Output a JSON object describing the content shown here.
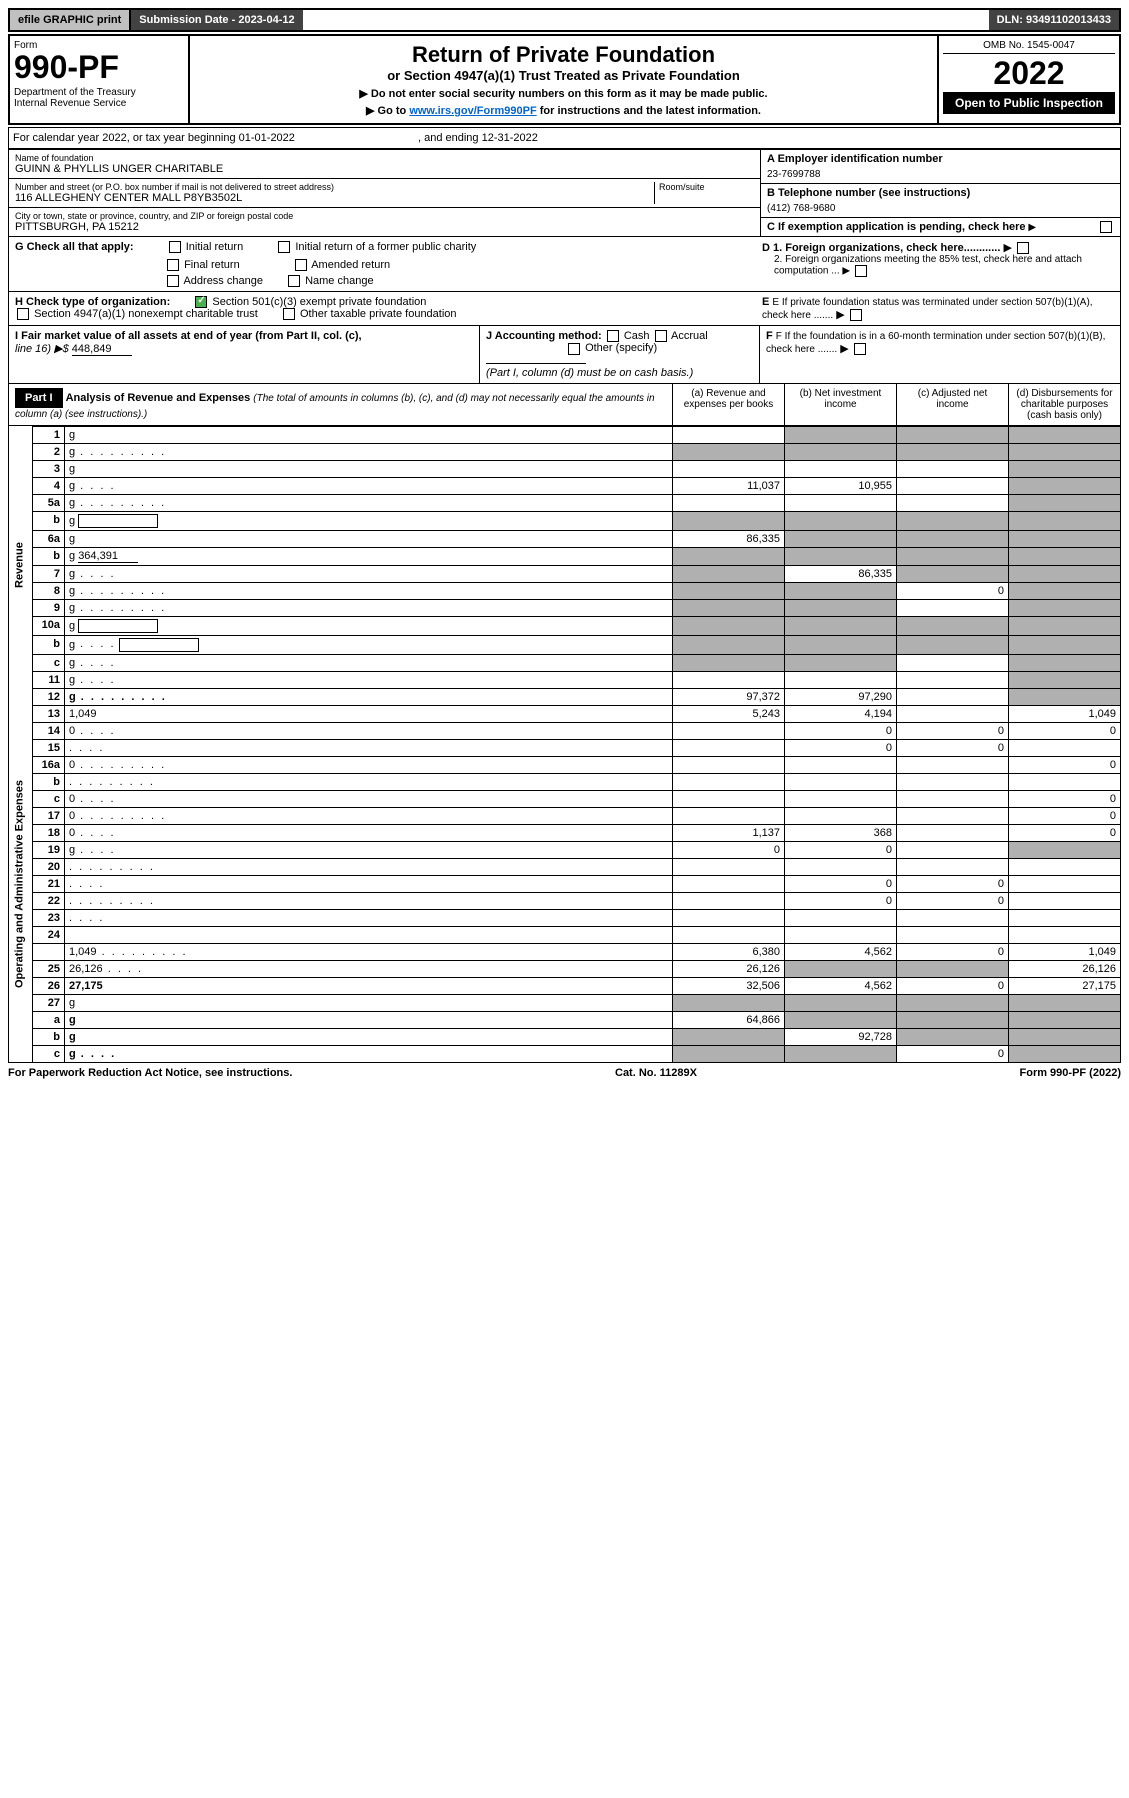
{
  "top": {
    "efile": "efile GRAPHIC print",
    "sub_date_label": "Submission Date - ",
    "sub_date": "2023-04-12",
    "dln_label": "DLN: ",
    "dln": "93491102013433"
  },
  "header": {
    "form_label": "Form",
    "form_number": "990-PF",
    "dept": "Department of the Treasury\nInternal Revenue Service",
    "title": "Return of Private Foundation",
    "subtitle": "or Section 4947(a)(1) Trust Treated as Private Foundation",
    "instr1": "▶ Do not enter social security numbers on this form as it may be made public.",
    "instr2_pre": "▶ Go to ",
    "instr2_link": "www.irs.gov/Form990PF",
    "instr2_post": " for instructions and the latest information.",
    "omb": "OMB No. 1545-0047",
    "year": "2022",
    "open": "Open to Public Inspection"
  },
  "cal": {
    "text": "For calendar year 2022, or tax year beginning ",
    "begin": "01-01-2022",
    "mid": " , and ending ",
    "end": "12-31-2022"
  },
  "info": {
    "name_label": "Name of foundation",
    "name": "GUINN & PHYLLIS UNGER CHARITABLE",
    "addr_label": "Number and street (or P.O. box number if mail is not delivered to street address)",
    "addr": "116 ALLEGHENY CENTER MALL P8YB3502L",
    "room_label": "Room/suite",
    "city_label": "City or town, state or province, country, and ZIP or foreign postal code",
    "city": "PITTSBURGH, PA  15212",
    "a_label": "A Employer identification number",
    "a_val": "23-7699788",
    "b_label": "B Telephone number (see instructions)",
    "b_val": "(412) 768-9680",
    "c_label": "C If exemption application is pending, check here",
    "d1": "D 1. Foreign organizations, check here............",
    "d2": "2. Foreign organizations meeting the 85% test, check here and attach computation ...",
    "e_label": "E  If private foundation status was terminated under section 507(b)(1)(A), check here .......",
    "f_label": "F  If the foundation is in a 60-month termination under section 507(b)(1)(B), check here .......",
    "g_label": "G Check all that apply:",
    "g_opts": [
      "Initial return",
      "Initial return of a former public charity",
      "Final return",
      "Amended return",
      "Address change",
      "Name change"
    ],
    "h_label": "H Check type of organization:",
    "h_opts": [
      "Section 501(c)(3) exempt private foundation",
      "Section 4947(a)(1) nonexempt charitable trust",
      "Other taxable private foundation"
    ],
    "i_label": "I Fair market value of all assets at end of year (from Part II, col. (c),",
    "i_line": "line 16) ▶$",
    "i_val": "448,849",
    "j_label": "J Accounting method:",
    "j_opts": [
      "Cash",
      "Accrual",
      "Other (specify)"
    ],
    "j_note": "(Part I, column (d) must be on cash basis.)"
  },
  "part1": {
    "label": "Part I",
    "title": "Analysis of Revenue and Expenses",
    "sub": "(The total of amounts in columns (b), (c), and (d) may not necessarily equal the amounts in column (a) (see instructions).)",
    "cols": {
      "a": "(a) Revenue and expenses per books",
      "b": "(b) Net investment income",
      "c": "(c) Adjusted net income",
      "d": "(d) Disbursements for charitable purposes (cash basis only)"
    }
  },
  "side_labels": {
    "revenue": "Revenue",
    "expenses": "Operating and Administrative Expenses"
  },
  "lines": [
    {
      "n": "1",
      "d": "g",
      "a": "",
      "b": "g",
      "c": "g"
    },
    {
      "n": "2",
      "d": "g",
      "dots": true,
      "a": "g",
      "b": "g",
      "c": "g",
      "checked": true
    },
    {
      "n": "3",
      "d": "g",
      "a": "",
      "b": "",
      "c": ""
    },
    {
      "n": "4",
      "d": "g",
      "dots": "short",
      "a": "11,037",
      "b": "10,955",
      "c": ""
    },
    {
      "n": "5a",
      "d": "g",
      "dots": true,
      "a": "",
      "b": "",
      "c": ""
    },
    {
      "n": "b",
      "d": "g",
      "inline": true,
      "a": "g",
      "b": "g",
      "c": "g"
    },
    {
      "n": "6a",
      "d": "g",
      "a": "86,335",
      "b": "g",
      "c": "g"
    },
    {
      "n": "b",
      "d": "g",
      "inline_val": "364,391",
      "a": "g",
      "b": "g",
      "c": "g"
    },
    {
      "n": "7",
      "d": "g",
      "dots": "short",
      "a": "g",
      "b": "86,335",
      "c": "g"
    },
    {
      "n": "8",
      "d": "g",
      "dots": true,
      "a": "g",
      "b": "g",
      "c": "0"
    },
    {
      "n": "9",
      "d": "g",
      "dots": true,
      "a": "g",
      "b": "g",
      "c": ""
    },
    {
      "n": "10a",
      "d": "g",
      "inline": true,
      "a": "g",
      "b": "g",
      "c": "g"
    },
    {
      "n": "b",
      "d": "g",
      "dots": "short",
      "inline": true,
      "a": "g",
      "b": "g",
      "c": "g"
    },
    {
      "n": "c",
      "d": "g",
      "dots": "short",
      "a": "g",
      "b": "g",
      "c": ""
    },
    {
      "n": "11",
      "d": "g",
      "dots": "short",
      "a": "",
      "b": "",
      "c": ""
    },
    {
      "n": "12",
      "d": "g",
      "dots": true,
      "bold": true,
      "a": "97,372",
      "b": "97,290",
      "c": ""
    }
  ],
  "lines2": [
    {
      "n": "13",
      "d": "1,049",
      "a": "5,243",
      "b": "4,194",
      "c": ""
    },
    {
      "n": "14",
      "d": "0",
      "dots": "short",
      "a": "",
      "b": "0",
      "c": "0"
    },
    {
      "n": "15",
      "d": "",
      "dots": "short",
      "a": "",
      "b": "0",
      "c": "0"
    },
    {
      "n": "16a",
      "d": "0",
      "dots": true,
      "a": "",
      "b": "",
      "c": ""
    },
    {
      "n": "b",
      "d": "",
      "dots": true,
      "a": "",
      "b": "",
      "c": ""
    },
    {
      "n": "c",
      "d": "0",
      "dots": "short",
      "a": "",
      "b": "",
      "c": ""
    },
    {
      "n": "17",
      "d": "0",
      "dots": true,
      "a": "",
      "b": "",
      "c": ""
    },
    {
      "n": "18",
      "d": "0",
      "dots": "short",
      "a": "1,137",
      "b": "368",
      "c": ""
    },
    {
      "n": "19",
      "d": "g",
      "dots": "short",
      "a": "0",
      "b": "0",
      "c": ""
    },
    {
      "n": "20",
      "d": "",
      "dots": true,
      "a": "",
      "b": "",
      "c": ""
    },
    {
      "n": "21",
      "d": "",
      "dots": "short",
      "a": "",
      "b": "0",
      "c": "0"
    },
    {
      "n": "22",
      "d": "",
      "dots": true,
      "a": "",
      "b": "0",
      "c": "0"
    },
    {
      "n": "23",
      "d": "",
      "dots": "short",
      "a": "",
      "b": "",
      "c": ""
    },
    {
      "n": "24",
      "d": "",
      "bold": true,
      "a": "",
      "b": "",
      "c": "",
      "noval": true
    },
    {
      "n": "",
      "d": "1,049",
      "dots": true,
      "a": "6,380",
      "b": "4,562",
      "c": "0"
    },
    {
      "n": "25",
      "d": "26,126",
      "dots": "short",
      "a": "26,126",
      "b": "g",
      "c": "g"
    },
    {
      "n": "26",
      "d": "27,175",
      "bold": true,
      "a": "32,506",
      "b": "4,562",
      "c": "0"
    },
    {
      "n": "27",
      "d": "g",
      "a": "g",
      "b": "g",
      "c": "g"
    },
    {
      "n": "a",
      "d": "g",
      "bold": true,
      "a": "64,866",
      "b": "g",
      "c": "g"
    },
    {
      "n": "b",
      "d": "g",
      "bold": true,
      "a": "g",
      "b": "92,728",
      "c": "g"
    },
    {
      "n": "c",
      "d": "g",
      "bold": true,
      "dots": "short",
      "a": "g",
      "b": "g",
      "c": "0"
    }
  ],
  "footer": {
    "left": "For Paperwork Reduction Act Notice, see instructions.",
    "mid": "Cat. No. 11289X",
    "right": "Form 990-PF (2022)"
  }
}
